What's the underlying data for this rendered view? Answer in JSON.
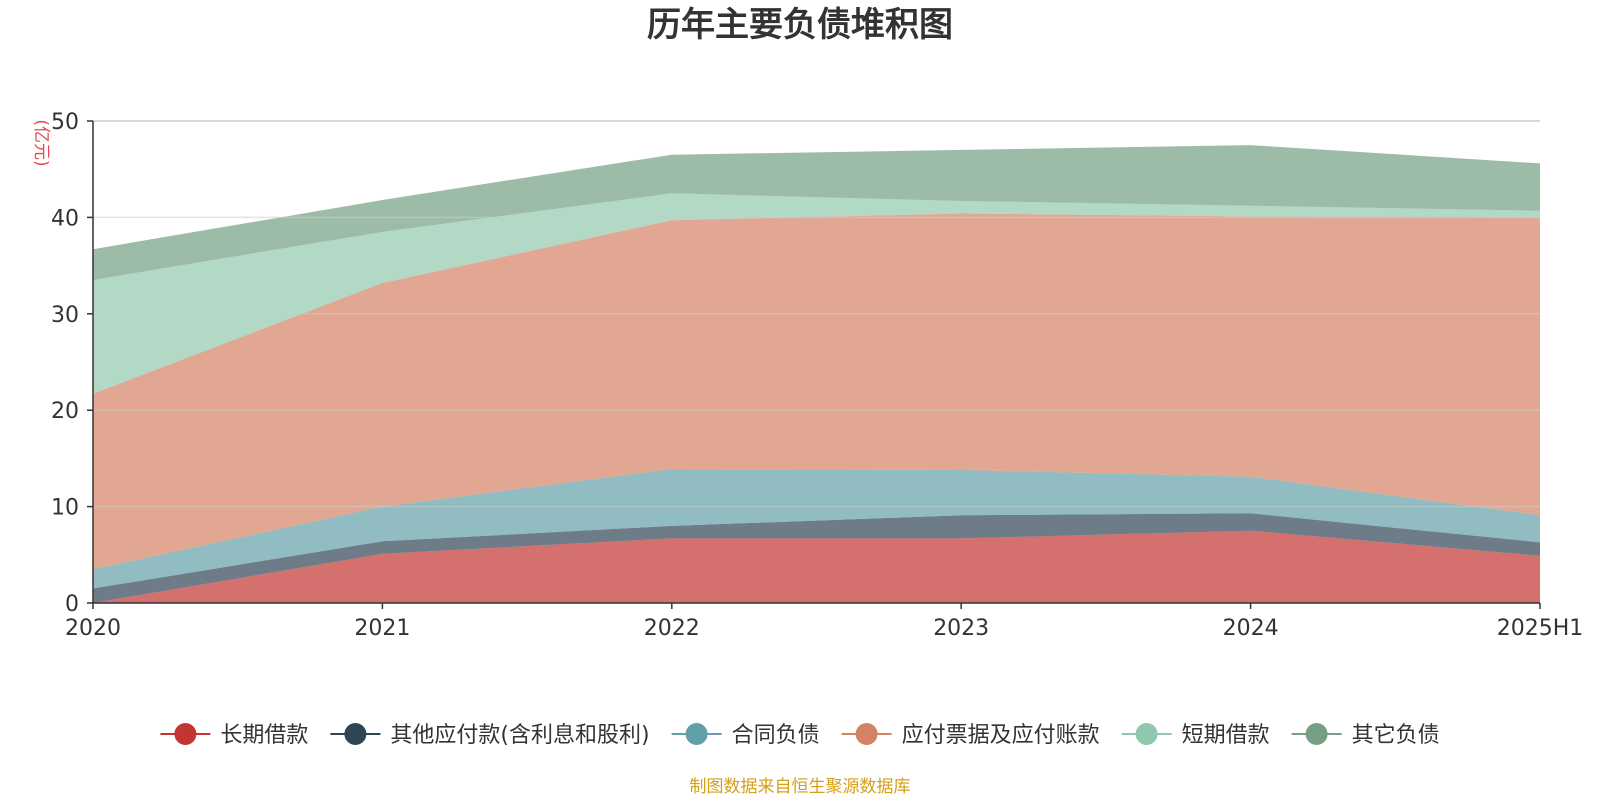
{
  "chart_data": {
    "type": "area",
    "stacked": true,
    "title": "历年主要负债堆积图",
    "ylabel": "(亿元)",
    "xlabel": "",
    "categories": [
      "2020",
      "2021",
      "2022",
      "2023",
      "2024",
      "2025H1"
    ],
    "ylim": [
      0,
      50
    ],
    "yticks": [
      0,
      10,
      20,
      30,
      40,
      50
    ],
    "grid": true,
    "legend_position": "bottom",
    "series": [
      {
        "name": "长期借款",
        "color": "#c23531",
        "values": [
          0.0,
          5.1,
          6.7,
          6.7,
          7.5,
          4.9
        ]
      },
      {
        "name": "其他应付款(含利息和股利)",
        "color": "#2f4554",
        "values": [
          1.5,
          1.3,
          1.3,
          2.4,
          1.8,
          1.4
        ]
      },
      {
        "name": "合同负债",
        "color": "#61a0a8",
        "values": [
          2.0,
          3.6,
          5.9,
          4.7,
          3.8,
          2.8
        ]
      },
      {
        "name": "应付票据及应付账款",
        "color": "#d48265",
        "values": [
          18.2,
          23.2,
          25.8,
          26.6,
          27.0,
          30.9
        ]
      },
      {
        "name": "短期借款",
        "color": "#91c7ae",
        "values": [
          11.8,
          5.3,
          2.8,
          1.3,
          1.1,
          0.7
        ]
      },
      {
        "name": "其它负债",
        "color": "#749f83",
        "values": [
          3.2,
          3.3,
          4.0,
          5.3,
          6.3,
          4.9
        ]
      }
    ]
  },
  "source": "制图数据来自恒生聚源数据库",
  "colors": {
    "title": "#333333",
    "axis": "#333333",
    "grid": "#cccccc",
    "unit": "#e8474b",
    "source": "#d4a017"
  }
}
